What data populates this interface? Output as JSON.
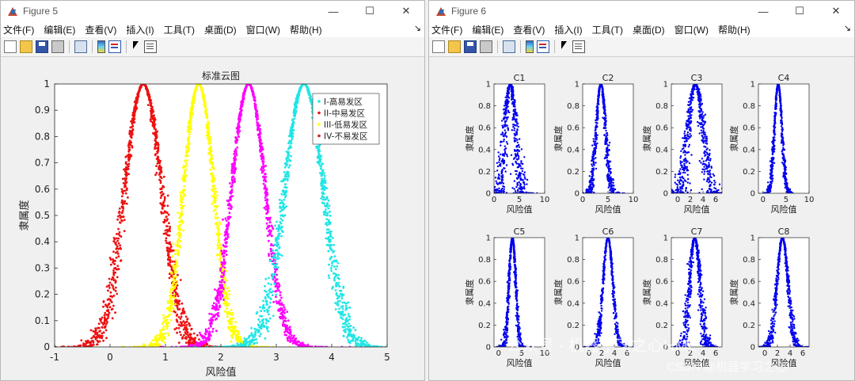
{
  "windows": [
    {
      "title": "Figure 5",
      "buttons": {
        "minimize": "—",
        "maximize": "☐",
        "close": "✕"
      },
      "menu": [
        "文件(F)",
        "编辑(E)",
        "查看(V)",
        "插入(I)",
        "工具(T)",
        "桌面(D)",
        "窗口(W)",
        "帮助(H)"
      ],
      "menu_arrow": "↘"
    },
    {
      "title": "Figure 6",
      "buttons": {
        "minimize": "—",
        "maximize": "☐",
        "close": "✕"
      },
      "menu": [
        "文件(F)",
        "编辑(E)",
        "查看(V)",
        "插入(I)",
        "工具(T)",
        "桌面(D)",
        "窗口(W)",
        "帮助(H)"
      ],
      "menu_arrow": "↘"
    }
  ],
  "toolbar_icons": [
    "new-file-icon",
    "open-folder-icon",
    "save-icon",
    "print-icon",
    "link-plot-icon",
    "colorbar-icon",
    "legend-icon",
    "pointer-icon",
    "property-inspector-icon"
  ],
  "watermark": {
    "line1": "公众号 · 机器学习之心HML",
    "line2": "CSDN @机器学习之心"
  },
  "chart_data": [
    {
      "type": "scatter",
      "title": "标准云图",
      "xlabel": "风险值",
      "ylabel": "隶属度",
      "xlim": [
        -1,
        5
      ],
      "ylim": [
        0,
        1
      ],
      "xticks": [
        -1,
        0,
        1,
        2,
        3,
        4,
        5
      ],
      "yticks": [
        0,
        0.1,
        0.2,
        0.3,
        0.4,
        0.5,
        0.6,
        0.7,
        0.8,
        0.9,
        1
      ],
      "legend_position": "top-right",
      "series": [
        {
          "name": "I-高易发区",
          "Ex": 0.6,
          "En": 0.33,
          "He": 0.03,
          "color": "#ee1111"
        },
        {
          "name": "II-中易发区",
          "Ex": 1.6,
          "En": 0.27,
          "He": 0.02,
          "color": "#ffff00"
        },
        {
          "name": "III-低易发区",
          "Ex": 2.5,
          "En": 0.3,
          "He": 0.02,
          "color": "#ff00ff"
        },
        {
          "name": "IV-不易发区",
          "Ex": 3.5,
          "En": 0.35,
          "He": 0.03,
          "color": "#22e5e5"
        }
      ],
      "legend_colors": [
        "#22e5e5",
        "#ee1111",
        "#ffff00",
        "#cc2222"
      ]
    },
    {
      "type": "scatter",
      "grid": [
        2,
        4
      ],
      "xlabel": "风险值",
      "ylabel": "隶属度",
      "ylim": [
        0,
        1
      ],
      "yticks": [
        0,
        0.2,
        0.4,
        0.6,
        0.8,
        1
      ],
      "color": "#0000ee",
      "subplots": [
        {
          "title": "C1",
          "xlim": [
            0,
            10
          ],
          "xticks": [
            0,
            5,
            10
          ],
          "Ex": 3.2,
          "En": 1.0,
          "He": 0.35
        },
        {
          "title": "C2",
          "xlim": [
            0,
            10
          ],
          "xticks": [
            0,
            5,
            10
          ],
          "Ex": 3.6,
          "En": 0.9,
          "He": 0.15
        },
        {
          "title": "C3",
          "xlim": [
            -1,
            7
          ],
          "xticks": [
            0,
            2,
            4,
            6
          ],
          "Ex": 2.8,
          "En": 1.1,
          "He": 0.3
        },
        {
          "title": "C4",
          "xlim": [
            -1,
            10
          ],
          "xticks": [
            0,
            5,
            10
          ],
          "Ex": 3.3,
          "En": 0.8,
          "He": 0.1
        },
        {
          "title": "C5",
          "xlim": [
            -1,
            10
          ],
          "xticks": [
            0,
            5,
            10
          ],
          "Ex": 3.0,
          "En": 0.7,
          "He": 0.12
        },
        {
          "title": "C6",
          "xlim": [
            -1,
            7
          ],
          "xticks": [
            0,
            2,
            4,
            6
          ],
          "Ex": 3.0,
          "En": 0.75,
          "He": 0.08
        },
        {
          "title": "C7",
          "xlim": [
            -1,
            7
          ],
          "xticks": [
            0,
            2,
            4,
            6
          ],
          "Ex": 2.7,
          "En": 0.8,
          "He": 0.18
        },
        {
          "title": "C8",
          "xlim": [
            -1,
            7
          ],
          "xticks": [
            0,
            2,
            4,
            6
          ],
          "Ex": 2.8,
          "En": 0.85,
          "He": 0.12
        }
      ]
    }
  ]
}
